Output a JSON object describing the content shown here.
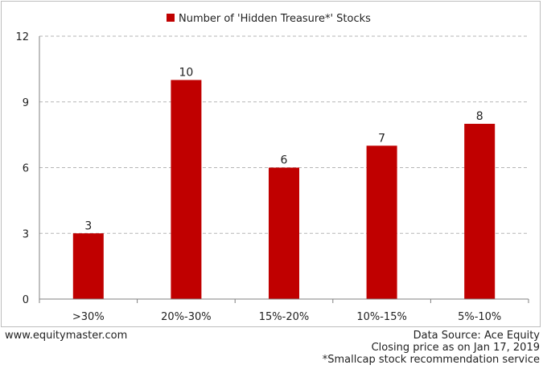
{
  "chart_data": {
    "type": "bar",
    "title": "",
    "legend": {
      "placement": "top-center",
      "entries": [
        "Number of 'Hidden Treasure*' Stocks"
      ]
    },
    "categories": [
      ">30%",
      "20%-30%",
      "15%-20%",
      "10%-15%",
      "5%-10%"
    ],
    "series": [
      {
        "name": "Number of 'Hidden Treasure*' Stocks",
        "values": [
          3,
          10,
          6,
          7,
          8
        ],
        "color": "#c00000"
      }
    ],
    "ylim": [
      0,
      12
    ],
    "yticks": [
      0,
      3,
      6,
      9,
      12
    ],
    "xlabel": "",
    "ylabel": "",
    "grid": "horizontal dashed",
    "data_labels": true
  },
  "footer": {
    "website": "www.equitymaster.com",
    "source": "Data Source: Ace Equity",
    "closing_note": "Closing price as on Jan 17, 2019",
    "footnote": "*Smallcap stock recommendation service"
  }
}
